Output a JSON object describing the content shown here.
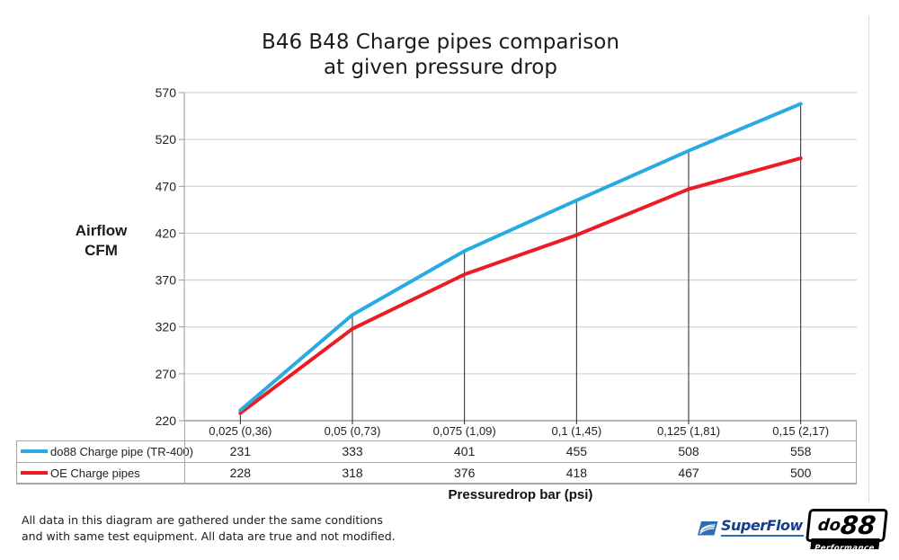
{
  "title": {
    "line1": "B46 B48 Charge pipes comparison",
    "line2": "at given pressure drop"
  },
  "chart_data": {
    "type": "line",
    "title": "B46 B48 Charge pipes comparison at given pressure drop",
    "categories": [
      "0,025 (0,36)",
      "0,05 (0,73)",
      "0,075 (1,09)",
      "0,1 (1,45)",
      "0,125 (1,81)",
      "0,15 (2,17)"
    ],
    "series": [
      {
        "name": "do88 Charge pipe (TR-400)",
        "color": "#29ABE2",
        "values": [
          231,
          333,
          401,
          455,
          508,
          558
        ]
      },
      {
        "name": "OE Charge pipes",
        "color": "#EC1C24",
        "values": [
          228,
          318,
          376,
          418,
          467,
          500
        ]
      }
    ],
    "xlabel": "Pressuredrop bar (psi)",
    "ylabel": "Airflow CFM",
    "ylabel_line1": "Airflow",
    "ylabel_line2": "CFM",
    "ylim": [
      220,
      570
    ],
    "yticks": [
      220,
      270,
      320,
      370,
      420,
      470,
      520,
      570
    ],
    "grid": true,
    "drop_lines": true,
    "legend_position": "table-left",
    "grid_color": "#c9c9c9",
    "axis_color": "#9b9b9b",
    "drop_line_color": "#262626"
  },
  "footer": {
    "line1": "All data in this diagram are gathered under the same conditions",
    "line2": "and with same test equipment. All data are true and not modified."
  },
  "logos": {
    "superflow": {
      "text": "SuperFlow",
      "accent": "#2e6db4"
    },
    "do88": {
      "prefix": "do",
      "suffix": "88",
      "sub": "Performance"
    }
  }
}
